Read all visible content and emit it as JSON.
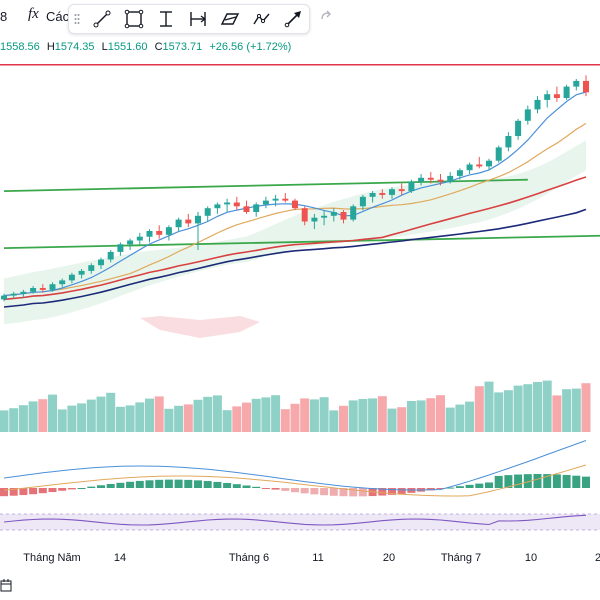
{
  "toolbar": {
    "partial_left": "8",
    "fx_label": "fx",
    "fx_text": "Các",
    "tools": [
      "trend-line",
      "rectangle",
      "fib-retracement",
      "date-price-range",
      "brush",
      "path",
      "arrow"
    ],
    "undo_icon": "redo-arrow-icon"
  },
  "ohlc": {
    "o_value": "1558.56",
    "h_label": "H",
    "h_value": "1574.35",
    "l_label": "L",
    "l_value": "1551.60",
    "c_label": "C",
    "c_value": "1573.71",
    "change": "+26.56 (+1.72%)"
  },
  "colors": {
    "up": "#26a69a",
    "down": "#ef5350",
    "vol_up": "#8fd1c7",
    "vol_down": "#f7a8ab",
    "ma_fast": "#4a90d9",
    "ma_slow": "#e0a95b",
    "ma_red": "#d94040",
    "ma_navy": "#1c2a78",
    "trend_green": "#3aa84a",
    "resistance": "#e0354b",
    "cloud": "#cde9d6",
    "cloud_red": "#f6c6cc",
    "rsi": "#7e57c2"
  },
  "chart_data": {
    "type": "candlestick",
    "title": "",
    "x_ticks": [
      "Tháng Năm",
      "14",
      "Tháng 6",
      "11",
      "20",
      "Tháng 7",
      "10",
      "2"
    ],
    "candles": [
      [
        1248,
        1254,
        1246,
        1252
      ],
      [
        1252,
        1256,
        1249,
        1254
      ],
      [
        1254,
        1258,
        1250,
        1256
      ],
      [
        1256,
        1262,
        1254,
        1260
      ],
      [
        1260,
        1264,
        1255,
        1258
      ],
      [
        1258,
        1266,
        1256,
        1264
      ],
      [
        1264,
        1270,
        1261,
        1268
      ],
      [
        1268,
        1276,
        1265,
        1274
      ],
      [
        1274,
        1280,
        1270,
        1278
      ],
      [
        1278,
        1286,
        1275,
        1284
      ],
      [
        1284,
        1292,
        1280,
        1290
      ],
      [
        1290,
        1300,
        1287,
        1298
      ],
      [
        1298,
        1308,
        1294,
        1306
      ],
      [
        1306,
        1312,
        1300,
        1310
      ],
      [
        1310,
        1318,
        1305,
        1314
      ],
      [
        1314,
        1322,
        1308,
        1320
      ],
      [
        1320,
        1326,
        1312,
        1316
      ],
      [
        1316,
        1326,
        1310,
        1324
      ],
      [
        1324,
        1334,
        1320,
        1332
      ],
      [
        1332,
        1338,
        1324,
        1328
      ],
      [
        1328,
        1340,
        1300,
        1336
      ],
      [
        1336,
        1346,
        1330,
        1344
      ],
      [
        1344,
        1350,
        1338,
        1348
      ],
      [
        1348,
        1354,
        1340,
        1350
      ],
      [
        1350,
        1356,
        1342,
        1346
      ],
      [
        1346,
        1352,
        1338,
        1340
      ],
      [
        1340,
        1350,
        1335,
        1348
      ],
      [
        1348,
        1356,
        1344,
        1352
      ],
      [
        1352,
        1358,
        1346,
        1354
      ],
      [
        1354,
        1360,
        1350,
        1352
      ],
      [
        1352,
        1354,
        1342,
        1344
      ],
      [
        1344,
        1346,
        1326,
        1330
      ],
      [
        1330,
        1338,
        1322,
        1334
      ],
      [
        1334,
        1342,
        1326,
        1336
      ],
      [
        1336,
        1344,
        1330,
        1340
      ],
      [
        1340,
        1342,
        1328,
        1332
      ],
      [
        1332,
        1348,
        1330,
        1346
      ],
      [
        1346,
        1358,
        1342,
        1356
      ],
      [
        1356,
        1362,
        1350,
        1360
      ],
      [
        1360,
        1364,
        1354,
        1358
      ],
      [
        1358,
        1366,
        1354,
        1364
      ],
      [
        1364,
        1370,
        1358,
        1362
      ],
      [
        1362,
        1374,
        1360,
        1372
      ],
      [
        1372,
        1380,
        1368,
        1376
      ],
      [
        1376,
        1382,
        1370,
        1374
      ],
      [
        1374,
        1380,
        1368,
        1372
      ],
      [
        1372,
        1382,
        1370,
        1378
      ],
      [
        1378,
        1386,
        1374,
        1384
      ],
      [
        1384,
        1392,
        1380,
        1390
      ],
      [
        1390,
        1398,
        1386,
        1388
      ],
      [
        1388,
        1396,
        1384,
        1394
      ],
      [
        1394,
        1410,
        1392,
        1408
      ],
      [
        1408,
        1424,
        1404,
        1420
      ],
      [
        1420,
        1438,
        1416,
        1436
      ],
      [
        1436,
        1452,
        1432,
        1448
      ],
      [
        1448,
        1462,
        1444,
        1458
      ],
      [
        1458,
        1468,
        1450,
        1464
      ],
      [
        1464,
        1472,
        1456,
        1460
      ],
      [
        1460,
        1474,
        1458,
        1472
      ],
      [
        1472,
        1480,
        1468,
        1478
      ],
      [
        1478,
        1484,
        1462,
        1466
      ]
    ],
    "ylim": [
      1200,
      1500
    ],
    "resistance_level": 1495,
    "trendline_upper": [
      [
        0,
        1362
      ],
      [
        54,
        1374
      ]
    ],
    "trendline_lower": [
      [
        0,
        1302
      ],
      [
        60,
        1315
      ]
    ]
  }
}
